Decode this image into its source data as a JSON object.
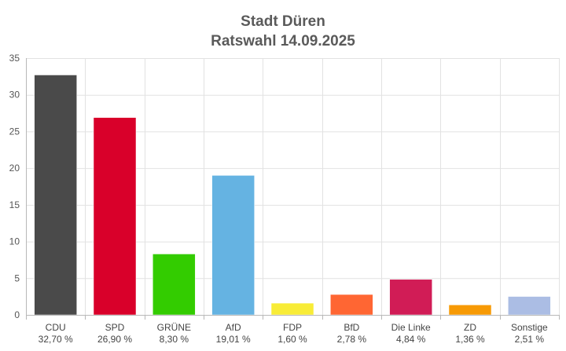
{
  "chart_data": {
    "type": "bar",
    "title": "Stadt Düren",
    "subtitle": "Ratswahl 14.09.2025",
    "xlabel": "",
    "ylabel": "",
    "ylim": [
      0,
      35
    ],
    "yticks": [
      0,
      5,
      10,
      15,
      20,
      25,
      30,
      35
    ],
    "grid": true,
    "legend": "none",
    "categories": [
      "CDU",
      "SPD",
      "GRÜNE",
      "AfD",
      "FDP",
      "BfD",
      "Die Linke",
      "ZD",
      "Sonstige"
    ],
    "values": [
      32.7,
      26.9,
      8.3,
      19.01,
      1.6,
      2.78,
      4.84,
      1.36,
      2.51
    ],
    "value_labels": [
      "32,70 %",
      "26,90 %",
      "8,30 %",
      "19,01 %",
      "1,60 %",
      "2,78 %",
      "4,84 %",
      "1,36 %",
      "2,51 %"
    ],
    "colors": [
      "#4a4a4a",
      "#d9002a",
      "#33cc00",
      "#65b3e2",
      "#f8ec37",
      "#ff6633",
      "#d11c56",
      "#f79a05",
      "#abbde4"
    ]
  }
}
